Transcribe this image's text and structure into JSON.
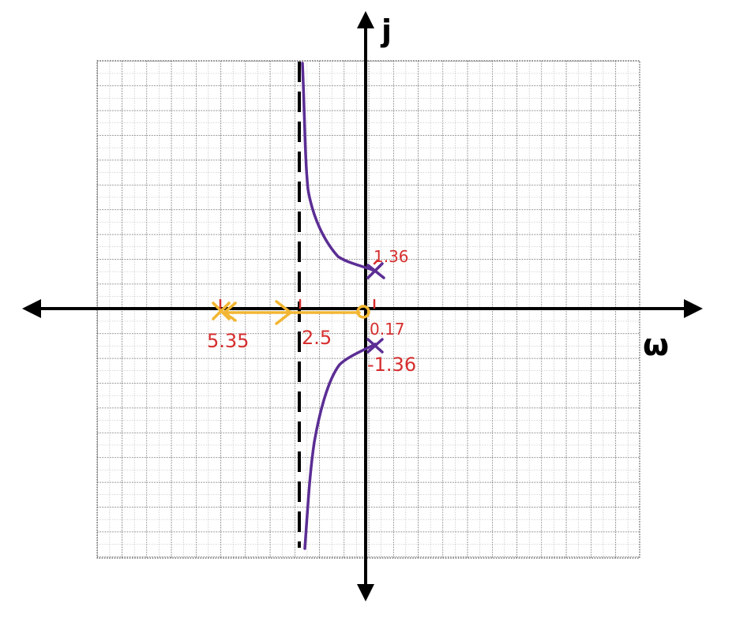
{
  "axes": {
    "horizontal_name": "ω",
    "vertical_name": "j"
  },
  "labels": {
    "pole_upper": "1.36",
    "pole_lower": "-1.36",
    "real_pole": "5.35",
    "centroid": "2.5",
    "zero": "0.17"
  },
  "colors": {
    "grid": "#555555",
    "axis": "#000000",
    "purple_locus": "#5b2d94",
    "yellow_locus": "#f2b632",
    "red_ink": "#d62e2e",
    "asymptote": "#000000"
  }
}
